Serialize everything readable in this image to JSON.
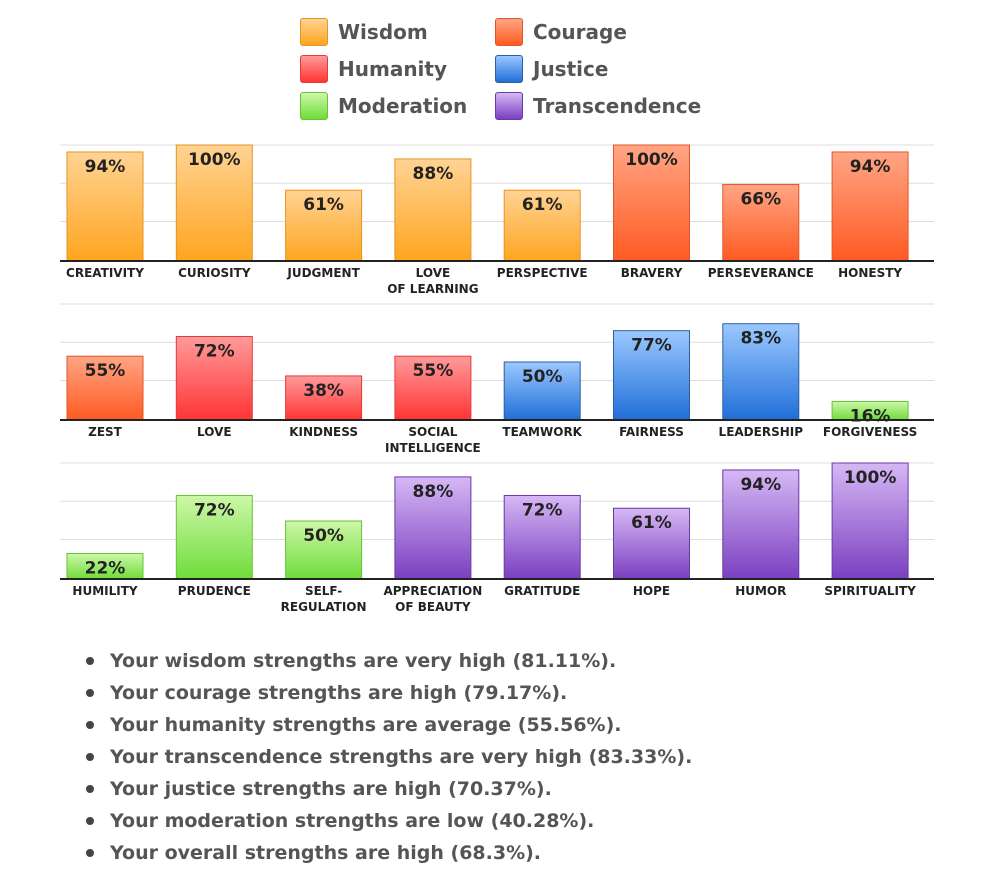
{
  "legend": [
    {
      "name": "Wisdom",
      "color_top": "#ffd394",
      "color_bottom": "#ffa51f",
      "border": "#e69422"
    },
    {
      "name": "Courage",
      "color_top": "#ffa584",
      "color_bottom": "#ff5a22",
      "border": "#e2552a"
    },
    {
      "name": "Humanity",
      "color_top": "#ff9a9a",
      "color_bottom": "#ff3434",
      "border": "#e23c3c"
    },
    {
      "name": "Justice",
      "color_top": "#9cc8ff",
      "color_bottom": "#1f6fd8",
      "border": "#2d5f9e"
    },
    {
      "name": "Moderation",
      "color_top": "#cdf7a8",
      "color_bottom": "#6fdc3a",
      "border": "#67c23b"
    },
    {
      "name": "Transcendence",
      "color_top": "#d6b8f5",
      "color_bottom": "#7a3fc0",
      "border": "#6a3aa5"
    }
  ],
  "chart_data": [
    {
      "type": "bar",
      "categories": [
        "CREATIVITY",
        "CURIOSITY",
        "JUDGMENT",
        "LOVE\nOF LEARNING",
        "PERSPECTIVE",
        "BRAVERY",
        "PERSEVERANCE",
        "HONESTY"
      ],
      "values": [
        94,
        100,
        61,
        88,
        61,
        100,
        66,
        94
      ],
      "value_labels": [
        "94%",
        "100%",
        "61%",
        "88%",
        "61%",
        "100%",
        "66%",
        "94%"
      ],
      "groups": [
        "Wisdom",
        "Wisdom",
        "Wisdom",
        "Wisdom",
        "Wisdom",
        "Courage",
        "Courage",
        "Courage"
      ],
      "ylim": [
        0,
        100
      ],
      "grid": true
    },
    {
      "type": "bar",
      "categories": [
        "ZEST",
        "LOVE",
        "KINDNESS",
        "SOCIAL\nINTELLIGENCE",
        "TEAMWORK",
        "FAIRNESS",
        "LEADERSHIP",
        "FORGIVENESS"
      ],
      "values": [
        55,
        72,
        38,
        55,
        50,
        77,
        83,
        16
      ],
      "value_labels": [
        "55%",
        "72%",
        "38%",
        "55%",
        "50%",
        "77%",
        "83%",
        "16%"
      ],
      "groups": [
        "Courage",
        "Humanity",
        "Humanity",
        "Humanity",
        "Justice",
        "Justice",
        "Justice",
        "Moderation"
      ],
      "ylim": [
        0,
        100
      ],
      "grid": true
    },
    {
      "type": "bar",
      "categories": [
        "HUMILITY",
        "PRUDENCE",
        "SELF-\nREGULATION",
        "APPRECIATION\nOF BEAUTY",
        "GRATITUDE",
        "HOPE",
        "HUMOR",
        "SPIRITUALITY"
      ],
      "values": [
        22,
        72,
        50,
        88,
        72,
        61,
        94,
        100
      ],
      "value_labels": [
        "22%",
        "72%",
        "50%",
        "88%",
        "72%",
        "61%",
        "94%",
        "100%"
      ],
      "groups": [
        "Moderation",
        "Moderation",
        "Moderation",
        "Transcendence",
        "Transcendence",
        "Transcendence",
        "Transcendence",
        "Transcendence"
      ],
      "ylim": [
        0,
        100
      ],
      "grid": true
    }
  ],
  "summary": [
    "Your wisdom strengths are very high (81.11%).",
    "Your courage strengths are high (79.17%).",
    "Your humanity strengths are average (55.56%).",
    "Your transcendence strengths are very high (83.33%).",
    "Your justice strengths are high (70.37%).",
    "Your moderation strengths are low (40.28%).",
    "Your overall strengths are high (68.3%)."
  ]
}
